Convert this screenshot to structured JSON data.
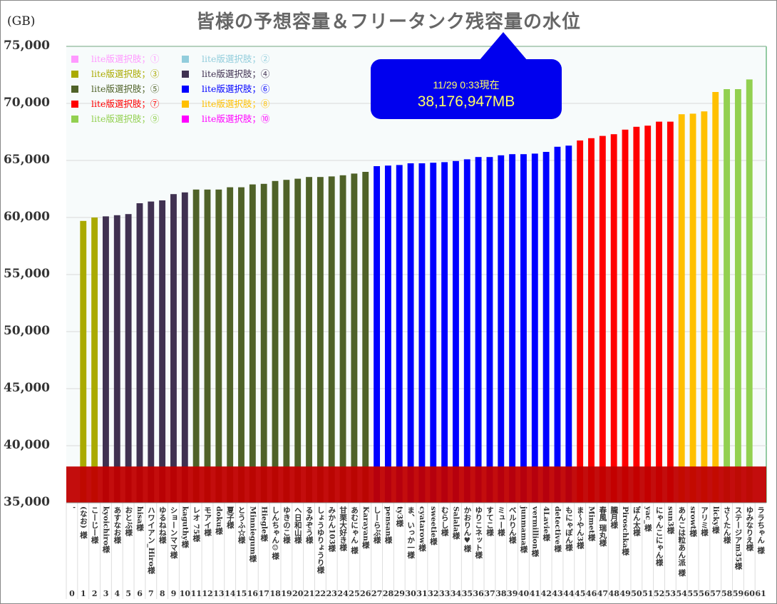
{
  "chart_data": {
    "type": "bar",
    "title": "皆様の予想容量＆フリータンク残容量の水位",
    "ylabel": "(GB)",
    "xlabel": "",
    "ylim": [
      35000,
      75000
    ],
    "yticks": [
      "35,000",
      "40,000",
      "45,000",
      "50,000",
      "55,000",
      "60,000",
      "65,000",
      "70,000",
      "75,000"
    ],
    "ytick_values": [
      35000,
      40000,
      45000,
      50000,
      55000,
      60000,
      65000,
      70000,
      75000
    ],
    "grid": true,
    "legend_position": "top-left",
    "legend": [
      {
        "label": "lite版選択肢；①",
        "color": "#ff99ff"
      },
      {
        "label": "lite版選択肢；②",
        "color": "#92cddc"
      },
      {
        "label": "lite版選択肢；③",
        "color": "#aaaa00"
      },
      {
        "label": "lite版選択肢；④",
        "color": "#403151"
      },
      {
        "label": "lite版選択肢；⑤",
        "color": "#4f6228"
      },
      {
        "label": "lite版選択肢；⑥",
        "color": "#0000ff"
      },
      {
        "label": "lite版選択肢；⑦",
        "color": "#ff0000"
      },
      {
        "label": "lite版選択肢；⑧",
        "color": "#ffc000"
      },
      {
        "label": "lite版選択肢；⑨",
        "color": "#92d050"
      },
      {
        "label": "lite版選択肢；⑩",
        "color": "#ff00ff"
      }
    ],
    "water_level": {
      "value": 38177,
      "color": "#c00000"
    },
    "categories": [
      "'",
      "(なお) 様",
      "こーじー様",
      "kyoichiro様",
      "あすなお様",
      "おとぶ様",
      "hisa様",
      "ハワイアン_Hiro様",
      "ゆるねね様",
      "ショーンママ様",
      "kaguthy様",
      "レオ 75様",
      "モアイ様",
      "doku様",
      "夏子様",
      "とうふ☆様",
      "Minniegum様",
      "Hiegle様",
      "しんちゃん☺様",
      "ゆきのこ様",
      "ヘ日和山様",
      "るみぞう様",
      "しょうゆりょうり様",
      "みかん103様",
      "甘栗大好き様",
      "あむにゃん 様",
      "Karayan様",
      "しーらぶ様",
      "pensan様",
      "ty3様",
      "ま、いっか一様",
      "cyatarow様",
      "sweetie様",
      "むらし様",
      "Salala様",
      "かおりん♥様",
      "ゆりこネット様",
      "すてこ様",
      "ミュー様",
      "べルりん様",
      "junmama様",
      "vermillion様",
      "4Lavie様",
      "detective様",
      "もにゃぽん様",
      "ま～やん3様",
      "Mimet様",
      "春風 瑞丸様",
      "朧月様",
      "Piroschka様",
      "ぽん太様",
      "yac_様",
      "にゃんこにゃん様",
      "sun3様",
      "あんこは粒あん派 様",
      "srowt様",
      "アリミ様",
      "licky様",
      "さ～たん様",
      "ステージアm35様",
      "ゆみなりえ様",
      "ララちゃん 様"
    ],
    "indices": [
      "0",
      "1",
      "2",
      "3",
      "4",
      "5",
      "6",
      "7",
      "8",
      "9",
      "10",
      "11",
      "12",
      "13",
      "14",
      "15",
      "16",
      "17",
      "18",
      "19",
      "20",
      "21",
      "22",
      "23",
      "24",
      "25",
      "26",
      "27",
      "28",
      "29",
      "30",
      "31",
      "32",
      "33",
      "34",
      "35",
      "36",
      "37",
      "38",
      "39",
      "40",
      "41",
      "42",
      "43",
      "44",
      "45",
      "46",
      "47",
      "48",
      "49",
      "50",
      "51",
      "52",
      "53",
      "54",
      "55",
      "56",
      "57",
      "58",
      "59",
      "60",
      "61"
    ],
    "values": [
      35100,
      59700,
      60000,
      60100,
      60200,
      60300,
      61250,
      61400,
      61500,
      62050,
      62200,
      62450,
      62450,
      62450,
      62650,
      62650,
      62900,
      62950,
      63200,
      63300,
      63400,
      63550,
      63550,
      63600,
      63700,
      63850,
      64000,
      64500,
      64550,
      64600,
      64750,
      64750,
      64800,
      64850,
      64950,
      65100,
      65300,
      65300,
      65450,
      65550,
      65550,
      65600,
      65750,
      66200,
      66300,
      66750,
      66950,
      67150,
      67300,
      67700,
      67950,
      68050,
      68400,
      68400,
      69050,
      69100,
      69300,
      71000,
      71250,
      71250,
      72100,
      35100
    ],
    "groups": [
      8,
      3,
      3,
      4,
      4,
      4,
      4,
      4,
      4,
      4,
      4,
      5,
      5,
      5,
      5,
      5,
      5,
      5,
      5,
      5,
      5,
      5,
      5,
      5,
      5,
      5,
      5,
      6,
      6,
      6,
      6,
      6,
      6,
      6,
      6,
      6,
      6,
      6,
      6,
      6,
      6,
      6,
      6,
      6,
      6,
      7,
      7,
      7,
      7,
      7,
      7,
      7,
      7,
      7,
      8,
      8,
      8,
      8,
      9,
      9,
      9,
      8
    ]
  },
  "callout": {
    "date": "11/29 0:33現在",
    "value": "38,176,947MB"
  }
}
